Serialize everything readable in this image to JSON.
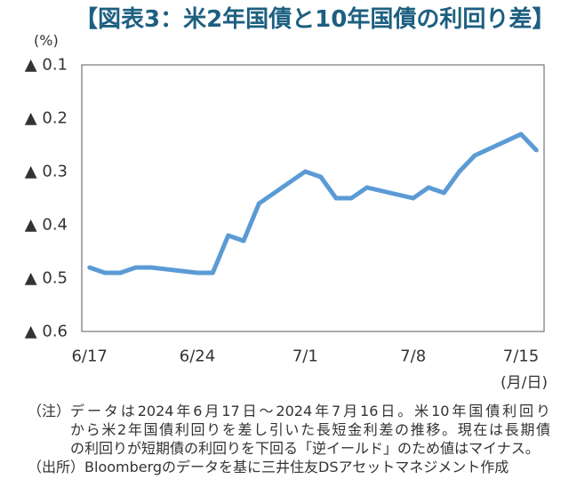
{
  "colors": {
    "title": "#1d5f80",
    "series_line": "#5b9bd5",
    "plot_frame": "#595959"
  },
  "chart_data": {
    "type": "line",
    "title": "【図表3：米2年国債と10年国債の利回り差】",
    "ylabel": "(%)",
    "xlabel": "(月/日)",
    "ylim": [
      -0.6,
      -0.1
    ],
    "yticks": [
      -0.1,
      -0.2,
      -0.3,
      -0.4,
      -0.5,
      -0.6
    ],
    "ytick_labels": [
      "▲ 0.1",
      "▲ 0.2",
      "▲ 0.3",
      "▲ 0.4",
      "▲ 0.5",
      "▲ 0.6"
    ],
    "xlim": [
      "2024-06-17",
      "2024-07-16"
    ],
    "xticks": [
      "2024-06-17",
      "2024-06-24",
      "2024-07-01",
      "2024-07-08",
      "2024-07-15"
    ],
    "xtick_labels": [
      "6/17",
      "6/24",
      "7/1",
      "7/8",
      "7/15"
    ],
    "grid": false,
    "legend": "none",
    "series": [
      {
        "x": [
          "2024-06-17",
          "2024-06-18",
          "2024-06-19",
          "2024-06-20",
          "2024-06-21",
          "2024-06-24",
          "2024-06-25",
          "2024-06-26",
          "2024-06-27",
          "2024-06-28",
          "2024-07-01",
          "2024-07-02",
          "2024-07-03",
          "2024-07-04",
          "2024-07-05",
          "2024-07-08",
          "2024-07-09",
          "2024-07-10",
          "2024-07-11",
          "2024-07-12",
          "2024-07-15",
          "2024-07-16"
        ],
        "values": [
          -0.48,
          -0.49,
          -0.49,
          -0.48,
          -0.48,
          -0.49,
          -0.49,
          -0.42,
          -0.43,
          -0.36,
          -0.3,
          -0.31,
          -0.35,
          -0.35,
          -0.33,
          -0.35,
          -0.33,
          -0.34,
          -0.3,
          -0.27,
          -0.23,
          -0.26
        ]
      }
    ]
  },
  "notes": {
    "note_label": "（注）",
    "note_lines": [
      "データは2024年6月17日～2024年7月16日。米10年国債利回り",
      "から米2年国債利回りを差し引いた長短金利差の推移。現在は長期債",
      "の利回りが短期債の利回りを下回る「逆イールド」のため値はマイナス。"
    ],
    "source_label": "（出所）",
    "source_text": "Bloombergのデータを基に三井住友DSアセットマネジメント作成"
  }
}
